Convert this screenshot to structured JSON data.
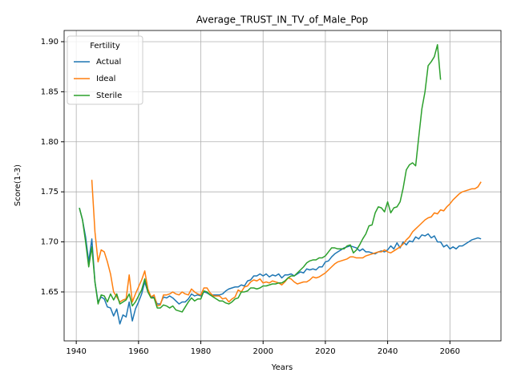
{
  "chart_data": {
    "type": "line",
    "title": "Average_TRUST_IN_TV_of_Male_Pop",
    "xlabel": "Years",
    "ylabel": "Score(1-3)",
    "legend_title": "Fertility",
    "legend": "upper left",
    "grid": true,
    "xlim": [
      1936.1,
      2076.4
    ],
    "ylim": [
      1.6011,
      1.9112
    ],
    "xticks": [
      1940,
      1960,
      1980,
      2000,
      2020,
      2040,
      2060
    ],
    "yticks": [
      1.65,
      {
        "value": 1.7,
        "label": "1.70"
      },
      1.75,
      {
        "value": 1.8,
        "label": "1.80"
      },
      1.85,
      {
        "value": 1.9,
        "label": "1.90"
      }
    ],
    "x": [
      1941,
      1942,
      1943,
      1944,
      1945,
      1946,
      1947,
      1948,
      1949,
      1950,
      1951,
      1952,
      1953,
      1954,
      1955,
      1956,
      1957,
      1958,
      1959,
      1960,
      1961,
      1962,
      1963,
      1964,
      1965,
      1966,
      1967,
      1968,
      1969,
      1970,
      1971,
      1972,
      1973,
      1974,
      1975,
      1976,
      1977,
      1978,
      1979,
      1980,
      1981,
      1982,
      1983,
      1984,
      1985,
      1986,
      1987,
      1988,
      1989,
      1990,
      1991,
      1992,
      1993,
      1994,
      1995,
      1996,
      1997,
      1998,
      1999,
      2000,
      2001,
      2002,
      2003,
      2004,
      2005,
      2006,
      2007,
      2008,
      2009,
      2010,
      2011,
      2012,
      2013,
      2014,
      2015,
      2016,
      2017,
      2018,
      2019,
      2020,
      2021,
      2022,
      2023,
      2024,
      2025,
      2026,
      2027,
      2028,
      2029,
      2030,
      2031,
      2032,
      2033,
      2034,
      2035,
      2036,
      2037,
      2038,
      2039,
      2040,
      2041,
      2042,
      2043,
      2044,
      2045,
      2046,
      2047,
      2048,
      2049,
      2050,
      2051,
      2052,
      2053,
      2054,
      2055,
      2056,
      2057,
      2058,
      2059,
      2060,
      2061,
      2062,
      2063,
      2064,
      2065,
      2066,
      2067,
      2068,
      2069,
      2070
    ],
    "series": [
      {
        "name": "Actual",
        "color": "#1f77b4",
        "values": [
          1.734,
          1.722,
          1.705,
          1.68,
          1.703,
          1.66,
          1.64,
          1.645,
          1.643,
          1.635,
          1.634,
          1.626,
          1.633,
          1.618,
          1.627,
          1.625,
          1.64,
          1.621,
          1.633,
          1.64,
          1.648,
          1.66,
          1.65,
          1.645,
          1.645,
          1.638,
          1.638,
          1.645,
          1.644,
          1.646,
          1.644,
          1.641,
          1.638,
          1.64,
          1.64,
          1.643,
          1.648,
          1.646,
          1.647,
          1.646,
          1.65,
          1.649,
          1.647,
          1.647,
          1.647,
          1.647,
          1.648,
          1.651,
          1.653,
          1.654,
          1.655,
          1.655,
          1.657,
          1.656,
          1.661,
          1.662,
          1.666,
          1.666,
          1.668,
          1.666,
          1.668,
          1.665,
          1.667,
          1.666,
          1.668,
          1.664,
          1.667,
          1.667,
          1.668,
          1.666,
          1.668,
          1.67,
          1.669,
          1.673,
          1.672,
          1.673,
          1.672,
          1.675,
          1.675,
          1.68,
          1.681,
          1.685,
          1.688,
          1.69,
          1.692,
          1.694,
          1.695,
          1.696,
          1.695,
          1.694,
          1.691,
          1.693,
          1.69,
          1.69,
          1.689,
          1.688,
          1.69,
          1.691,
          1.69,
          1.692,
          1.696,
          1.693,
          1.699,
          1.694,
          1.7,
          1.697,
          1.701,
          1.7,
          1.705,
          1.703,
          1.707,
          1.706,
          1.708,
          1.704,
          1.706,
          1.7,
          1.7,
          1.695,
          1.697,
          1.693,
          1.695,
          1.693,
          1.696,
          1.696,
          1.698,
          1.7,
          1.702,
          1.703,
          1.704,
          1.703
        ]
      },
      {
        "name": "Ideal",
        "color": "#ff7f0e",
        "values": [
          null,
          null,
          null,
          null,
          1.762,
          1.71,
          1.68,
          1.692,
          1.69,
          1.68,
          1.668,
          1.65,
          1.645,
          1.64,
          1.642,
          1.643,
          1.667,
          1.64,
          1.648,
          1.655,
          1.662,
          1.671,
          1.653,
          1.645,
          1.647,
          1.636,
          1.637,
          1.647,
          1.647,
          1.648,
          1.65,
          1.648,
          1.647,
          1.65,
          1.648,
          1.647,
          1.653,
          1.65,
          1.648,
          1.647,
          1.654,
          1.654,
          1.649,
          1.646,
          1.646,
          1.646,
          1.643,
          1.644,
          1.64,
          1.643,
          1.645,
          1.652,
          1.65,
          1.655,
          1.656,
          1.66,
          1.662,
          1.661,
          1.663,
          1.659,
          1.66,
          1.659,
          1.661,
          1.66,
          1.659,
          1.657,
          1.66,
          1.664,
          1.663,
          1.66,
          1.658,
          1.659,
          1.66,
          1.66,
          1.662,
          1.665,
          1.664,
          1.665,
          1.667,
          1.669,
          1.672,
          1.675,
          1.678,
          1.68,
          1.681,
          1.682,
          1.683,
          1.685,
          1.685,
          1.684,
          1.684,
          1.684,
          1.686,
          1.687,
          1.688,
          1.689,
          1.69,
          1.69,
          1.692,
          1.69,
          1.689,
          1.691,
          1.693,
          1.695,
          1.698,
          1.702,
          1.705,
          1.71,
          1.713,
          1.716,
          1.719,
          1.722,
          1.724,
          1.725,
          1.729,
          1.728,
          1.732,
          1.731,
          1.735,
          1.738,
          1.742,
          1.745,
          1.748,
          1.75,
          1.751,
          1.752,
          1.753,
          1.753,
          1.755,
          1.76
        ]
      },
      {
        "name": "Sterile",
        "color": "#2ca02c",
        "values": [
          1.734,
          1.722,
          1.7,
          1.675,
          1.695,
          1.66,
          1.638,
          1.647,
          1.646,
          1.64,
          1.648,
          1.642,
          1.648,
          1.638,
          1.64,
          1.642,
          1.648,
          1.636,
          1.64,
          1.646,
          1.652,
          1.663,
          1.65,
          1.644,
          1.644,
          1.634,
          1.634,
          1.637,
          1.636,
          1.634,
          1.636,
          1.632,
          1.631,
          1.63,
          1.635,
          1.64,
          1.644,
          1.641,
          1.643,
          1.643,
          1.651,
          1.65,
          1.647,
          1.645,
          1.643,
          1.641,
          1.641,
          1.639,
          1.638,
          1.64,
          1.643,
          1.644,
          1.65,
          1.65,
          1.651,
          1.654,
          1.654,
          1.653,
          1.654,
          1.656,
          1.656,
          1.657,
          1.658,
          1.658,
          1.659,
          1.659,
          1.661,
          1.664,
          1.666,
          1.666,
          1.669,
          1.672,
          1.675,
          1.679,
          1.681,
          1.682,
          1.682,
          1.684,
          1.684,
          1.686,
          1.69,
          1.694,
          1.694,
          1.693,
          1.693,
          1.693,
          1.696,
          1.697,
          1.689,
          1.692,
          1.697,
          1.703,
          1.708,
          1.716,
          1.717,
          1.729,
          1.735,
          1.734,
          1.73,
          1.74,
          1.729,
          1.734,
          1.735,
          1.74,
          1.754,
          1.772,
          1.777,
          1.779,
          1.776,
          1.805,
          1.833,
          1.85,
          1.876,
          1.88,
          1.885,
          1.897,
          1.862,
          null,
          null,
          null,
          null,
          null,
          null,
          null,
          null,
          null,
          null,
          null,
          null,
          null
        ]
      }
    ]
  }
}
